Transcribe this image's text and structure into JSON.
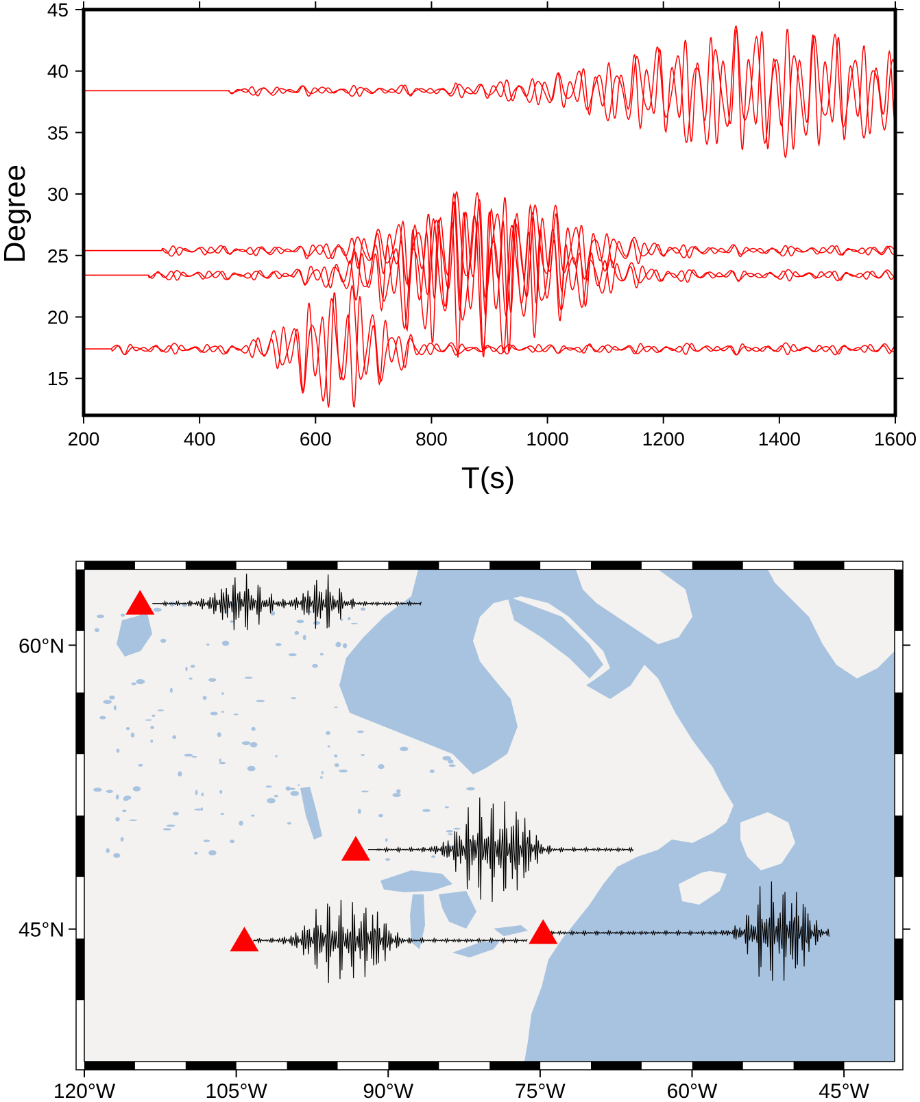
{
  "colors": {
    "trace": "#ff0000",
    "map_trace": "#000000",
    "land": "#f3f2f0",
    "water": "#a8c3e0",
    "station": "#ff0000"
  },
  "chart_data": [
    {
      "type": "line",
      "title": "",
      "xlabel": "T(s)",
      "ylabel": "Degree",
      "xlim": [
        200,
        1600
      ],
      "ylim": [
        12,
        45
      ],
      "xticks": [
        200,
        400,
        600,
        800,
        1000,
        1200,
        1400,
        1600
      ],
      "yticks": [
        15,
        20,
        25,
        30,
        35,
        40,
        45
      ],
      "grid": false,
      "series": [
        {
          "offset_deg": 38.4,
          "onset_s": 450,
          "wave_start_s": 840,
          "peak_s": 1380,
          "max_amp_deg": 5.0
        },
        {
          "offset_deg": 25.4,
          "onset_s": 335,
          "wave_start_s": 580,
          "peak_s": 900,
          "max_amp_deg": 5.0
        },
        {
          "offset_deg": 23.4,
          "onset_s": 312,
          "wave_start_s": 560,
          "peak_s": 880,
          "max_amp_deg": 6.5
        },
        {
          "offset_deg": 17.4,
          "onset_s": 248,
          "wave_start_s": 470,
          "peak_s": 640,
          "max_amp_deg": 5.0
        }
      ]
    },
    {
      "type": "map",
      "lon_range": [
        -120,
        -40
      ],
      "lat_range": [
        38,
        64
      ],
      "lon_ticks": [
        "120°W",
        "105°W",
        "90°W",
        "75°W",
        "60°W",
        "45°W"
      ],
      "lat_ticks": [
        "60°N",
        "45°N"
      ],
      "stations": [
        {
          "lon": -114.5,
          "lat": 62.2
        },
        {
          "lon": -93.2,
          "lat": 49.2
        },
        {
          "lon": -104.2,
          "lat": 44.4
        },
        {
          "lon": -74.7,
          "lat": 44.8
        }
      ]
    }
  ]
}
